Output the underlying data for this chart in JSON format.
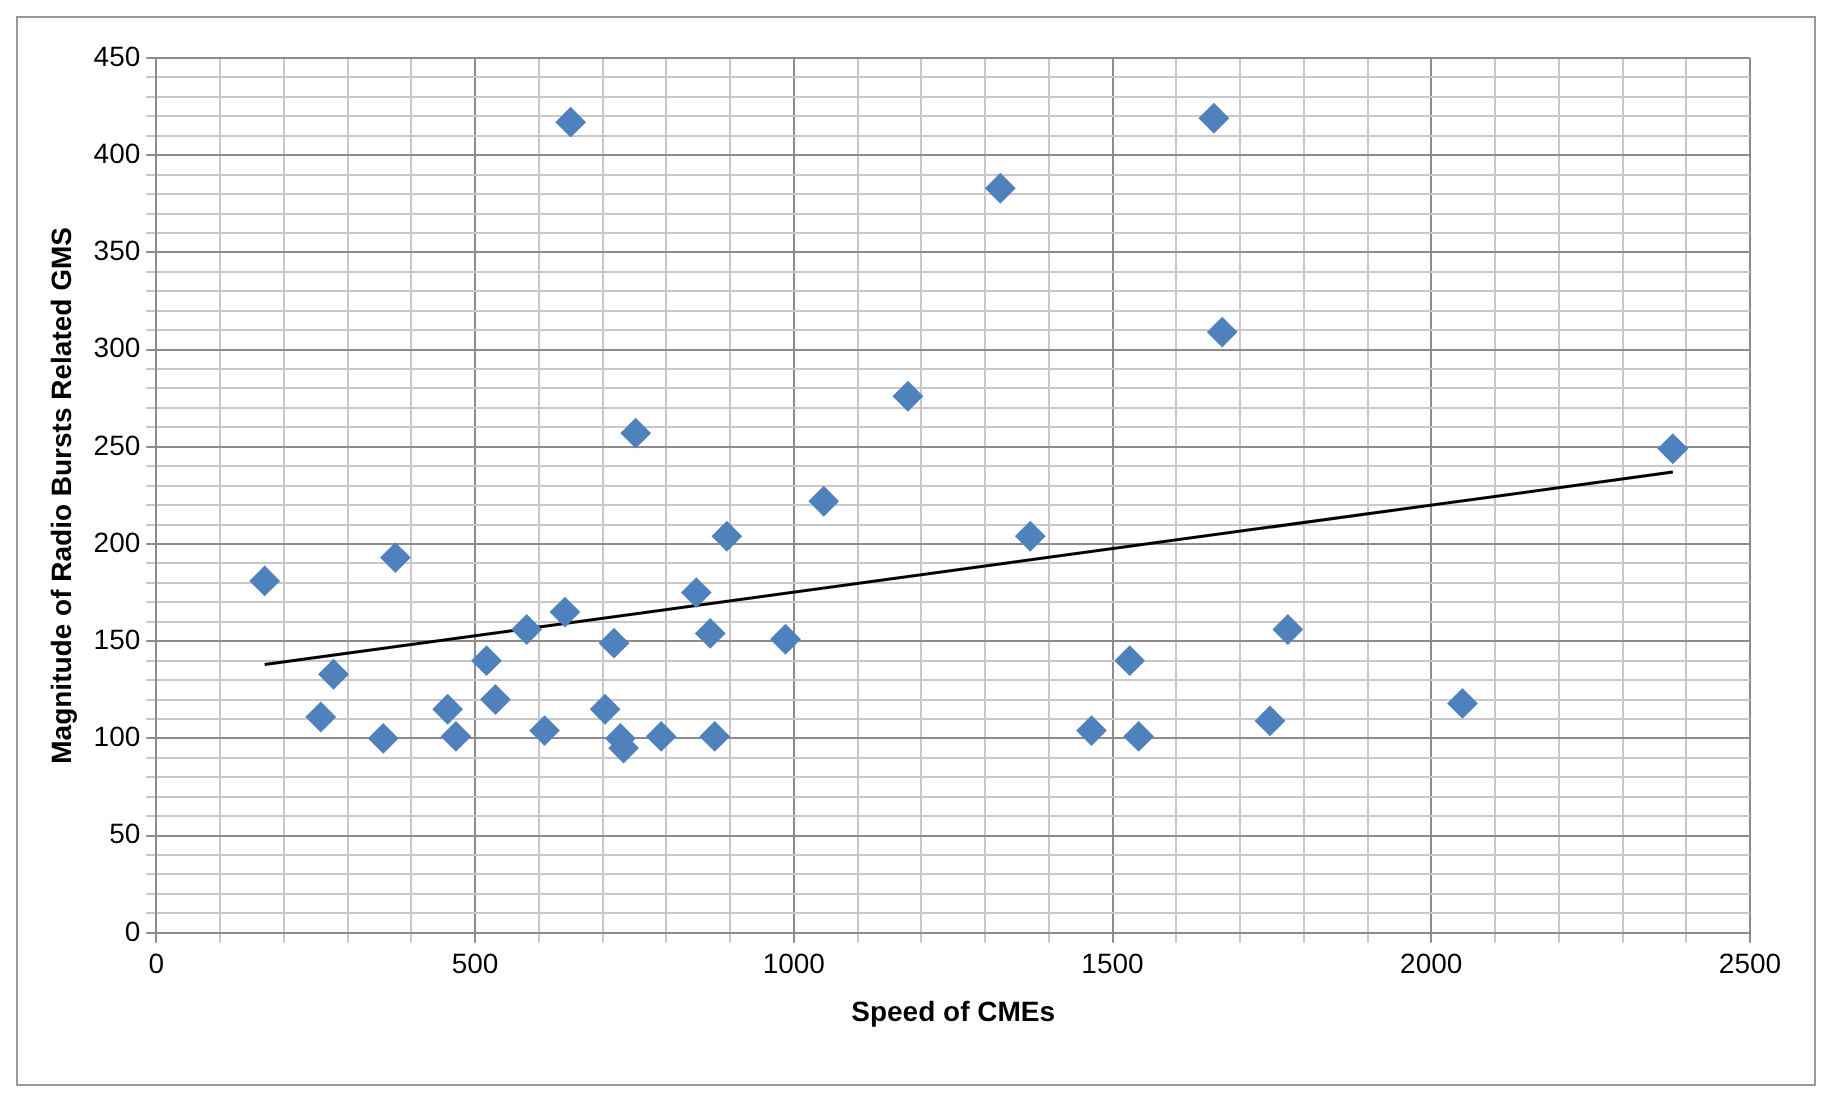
{
  "chart_data": {
    "type": "scatter",
    "xlabel": "Speed of CMEs",
    "ylabel": "Magnitude of Radio Bursts Related GMS",
    "x": [
      650,
      752,
      1179,
      1047,
      895,
      170,
      375,
      847,
      641,
      581,
      718,
      869,
      987,
      518,
      278,
      532,
      457,
      704,
      258,
      609,
      470,
      792,
      876,
      356,
      733,
      728,
      1659,
      1324,
      1672,
      2379,
      1371,
      1775,
      1527,
      2049,
      1747,
      1467,
      1541
    ],
    "series": [
      {
        "color": "#4f81bd",
        "marker": "diamond",
        "values": [
          417,
          257,
          276,
          222,
          204,
          181,
          193,
          175,
          165,
          156,
          149,
          154,
          151,
          140,
          133,
          120,
          115,
          115,
          111,
          104,
          101,
          101,
          101,
          100,
          95,
          100,
          419,
          383,
          309,
          249,
          204,
          156,
          140,
          118,
          109,
          104,
          101
        ]
      },
      {
        "type": "line",
        "color": "#000000",
        "marker": "none",
        "x": [
          170,
          2379
        ],
        "values": [
          138,
          237
        ]
      }
    ],
    "xlim": [
      0,
      2500
    ],
    "ylim": [
      0,
      450
    ],
    "xticks": [
      0,
      {
        "value": 100,
        "label": null
      },
      {
        "value": 200,
        "label": null
      },
      {
        "value": 300,
        "label": null
      },
      {
        "value": 400,
        "label": null
      },
      500,
      {
        "value": 600,
        "label": null
      },
      {
        "value": 700,
        "label": null
      },
      {
        "value": 800,
        "label": null
      },
      {
        "value": 900,
        "label": null
      },
      1000,
      {
        "value": 1100,
        "label": null
      },
      {
        "value": 1200,
        "label": null
      },
      {
        "value": 1300,
        "label": null
      },
      {
        "value": 1400,
        "label": null
      },
      1500,
      {
        "value": 1600,
        "label": null
      },
      {
        "value": 1700,
        "label": null
      },
      {
        "value": 1800,
        "label": null
      },
      {
        "value": 1900,
        "label": null
      },
      2000,
      {
        "value": 2100,
        "label": null
      },
      {
        "value": 2200,
        "label": null
      },
      {
        "value": 2300,
        "label": null
      },
      {
        "value": 2400,
        "label": null
      },
      2500
    ],
    "yticks": [
      0,
      {
        "value": 10,
        "label": null
      },
      {
        "value": 20,
        "label": null
      },
      {
        "value": 30,
        "label": null
      },
      {
        "value": 40,
        "label": null
      },
      50,
      {
        "value": 60,
        "label": null
      },
      {
        "value": 70,
        "label": null
      },
      {
        "value": 80,
        "label": null
      },
      {
        "value": 90,
        "label": null
      },
      100,
      {
        "value": 110,
        "label": null
      },
      {
        "value": 120,
        "label": null
      },
      {
        "value": 130,
        "label": null
      },
      {
        "value": 140,
        "label": null
      },
      150,
      {
        "value": 160,
        "label": null
      },
      {
        "value": 170,
        "label": null
      },
      {
        "value": 180,
        "label": null
      },
      {
        "value": 190,
        "label": null
      },
      200,
      {
        "value": 210,
        "label": null
      },
      {
        "value": 220,
        "label": null
      },
      {
        "value": 230,
        "label": null
      },
      {
        "value": 240,
        "label": null
      },
      250,
      {
        "value": 260,
        "label": null
      },
      {
        "value": 270,
        "label": null
      },
      {
        "value": 280,
        "label": null
      },
      {
        "value": 290,
        "label": null
      },
      300,
      {
        "value": 310,
        "label": null
      },
      {
        "value": 320,
        "label": null
      },
      {
        "value": 330,
        "label": null
      },
      {
        "value": 340,
        "label": null
      },
      350,
      {
        "value": 360,
        "label": null
      },
      {
        "value": 370,
        "label": null
      },
      {
        "value": 380,
        "label": null
      },
      {
        "value": 390,
        "label": null
      },
      400,
      {
        "value": 410,
        "label": null
      },
      {
        "value": 420,
        "label": null
      },
      {
        "value": 430,
        "label": null
      },
      {
        "value": 440,
        "label": null
      },
      450
    ],
    "grid": true,
    "legend": false
  }
}
